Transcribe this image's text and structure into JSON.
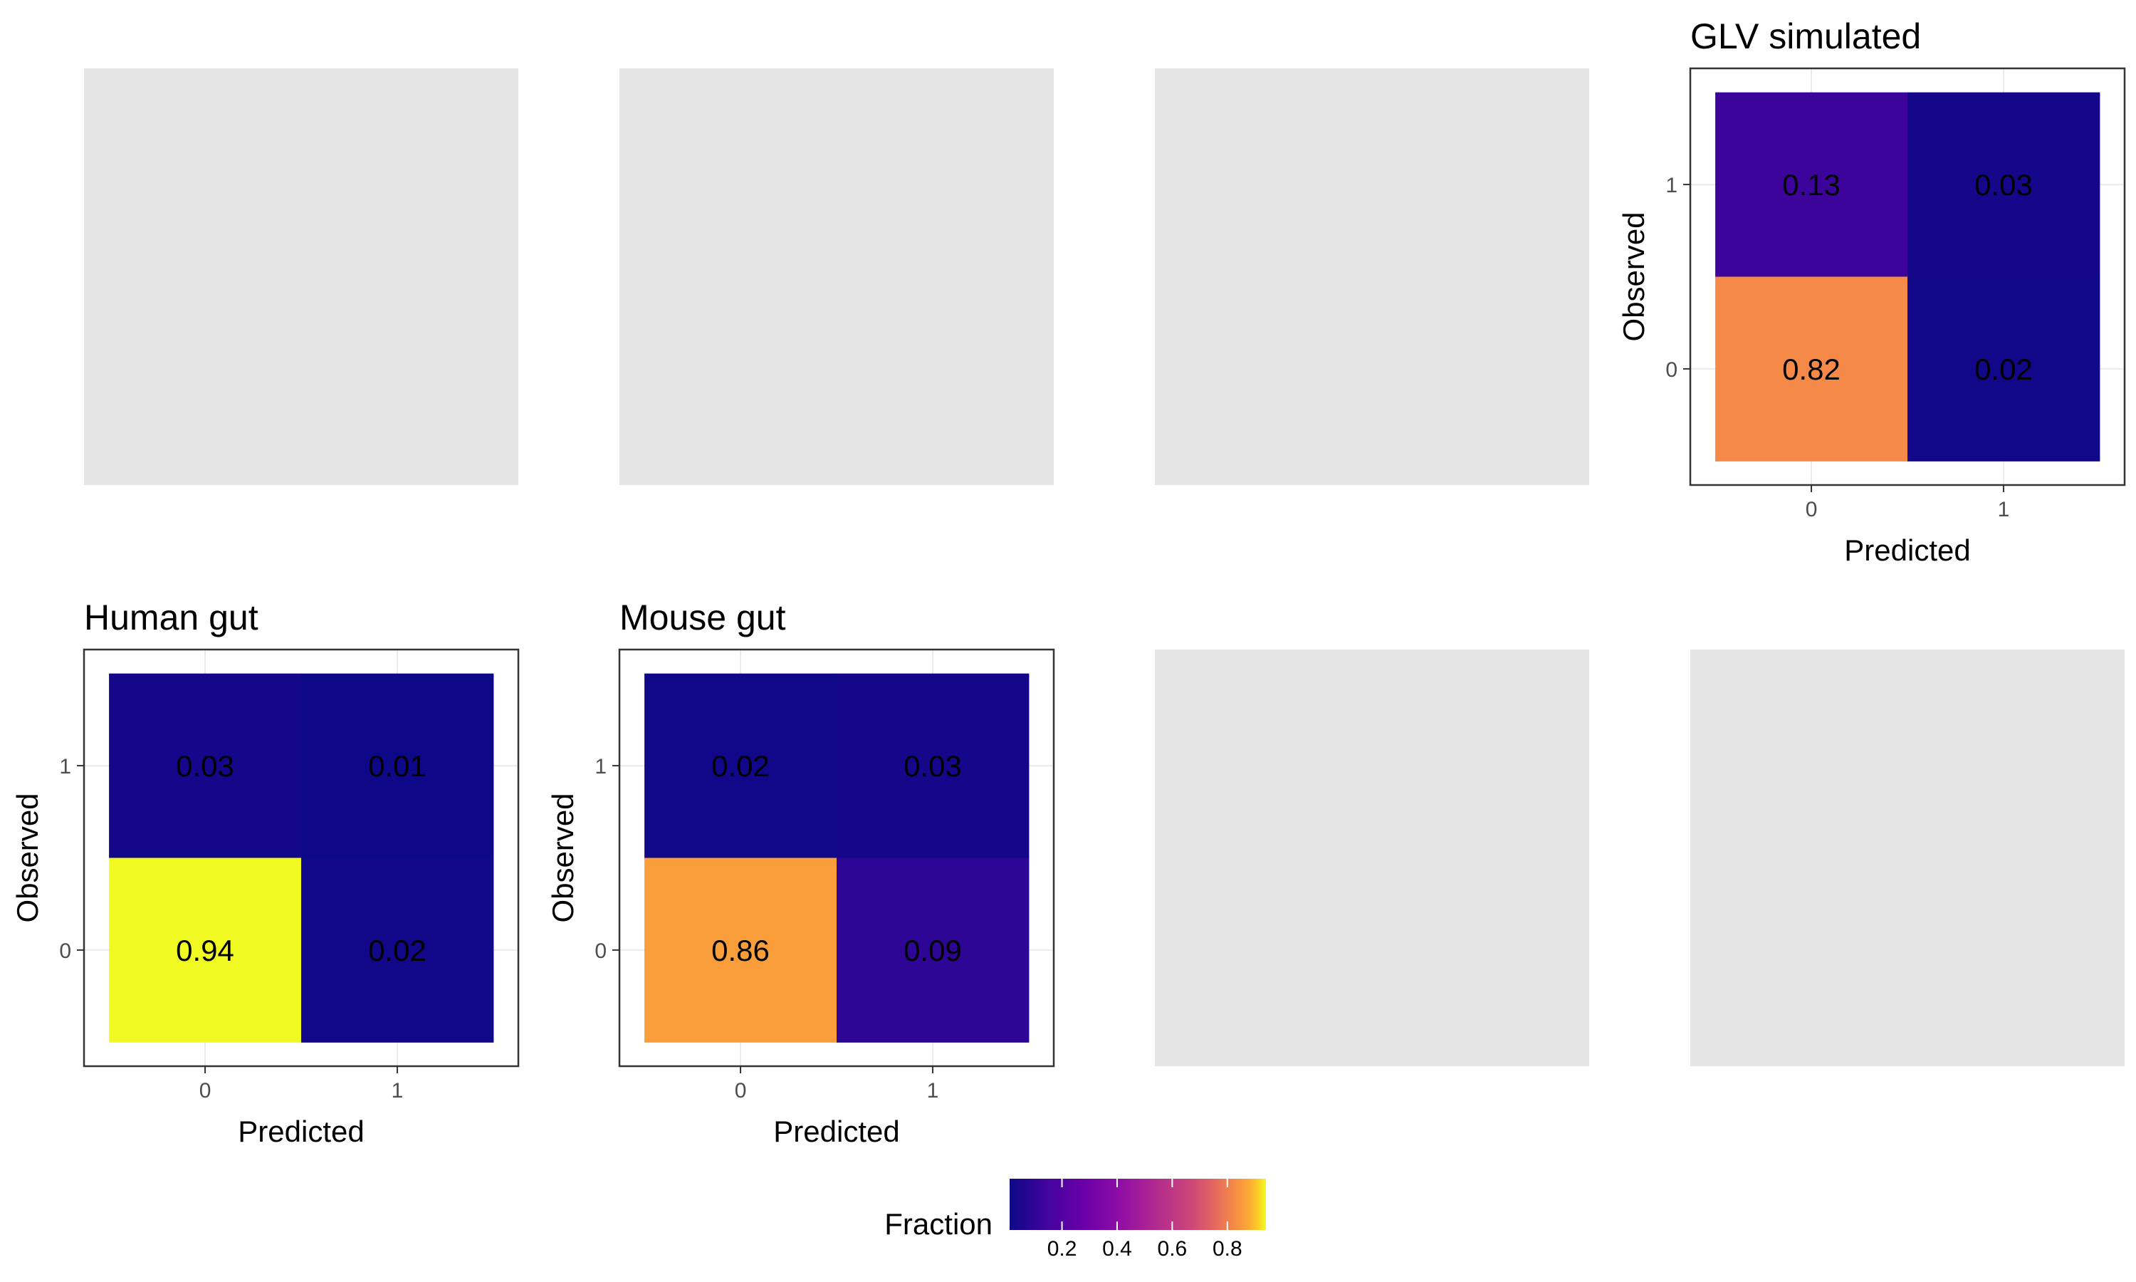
{
  "chart_data": [
    {
      "type": "heatmap",
      "title": "GLV simulated",
      "xlabel": "Predicted",
      "ylabel": "Observed",
      "x_categories": [
        "0",
        "1"
      ],
      "y_categories": [
        "0",
        "1"
      ],
      "cells": [
        {
          "x": "0",
          "y": "1",
          "value": 0.13,
          "label": "0.13"
        },
        {
          "x": "1",
          "y": "1",
          "value": 0.03,
          "label": "0.03"
        },
        {
          "x": "0",
          "y": "0",
          "value": 0.82,
          "label": "0.82"
        },
        {
          "x": "1",
          "y": "0",
          "value": 0.02,
          "label": "0.02"
        }
      ]
    },
    {
      "type": "heatmap",
      "title": "Human gut",
      "xlabel": "Predicted",
      "ylabel": "Observed",
      "x_categories": [
        "0",
        "1"
      ],
      "y_categories": [
        "0",
        "1"
      ],
      "cells": [
        {
          "x": "0",
          "y": "1",
          "value": 0.03,
          "label": "0.03"
        },
        {
          "x": "1",
          "y": "1",
          "value": 0.01,
          "label": "0.01"
        },
        {
          "x": "0",
          "y": "0",
          "value": 0.94,
          "label": "0.94"
        },
        {
          "x": "1",
          "y": "0",
          "value": 0.02,
          "label": "0.02"
        }
      ]
    },
    {
      "type": "heatmap",
      "title": "Mouse gut",
      "xlabel": "Predicted",
      "ylabel": "Observed",
      "x_categories": [
        "0",
        "1"
      ],
      "y_categories": [
        "0",
        "1"
      ],
      "cells": [
        {
          "x": "0",
          "y": "1",
          "value": 0.02,
          "label": "0.02"
        },
        {
          "x": "1",
          "y": "1",
          "value": 0.03,
          "label": "0.03"
        },
        {
          "x": "0",
          "y": "0",
          "value": 0.86,
          "label": "0.86"
        },
        {
          "x": "1",
          "y": "0",
          "value": 0.09,
          "label": "0.09"
        }
      ]
    }
  ],
  "legend": {
    "title": "Fraction",
    "range": [
      0.01,
      0.94
    ],
    "ticks": [
      "0.2",
      "0.4",
      "0.6",
      "0.8"
    ],
    "colormap": "plasma",
    "placement": "bottom"
  },
  "placeholder_color": "#e5e5e5"
}
